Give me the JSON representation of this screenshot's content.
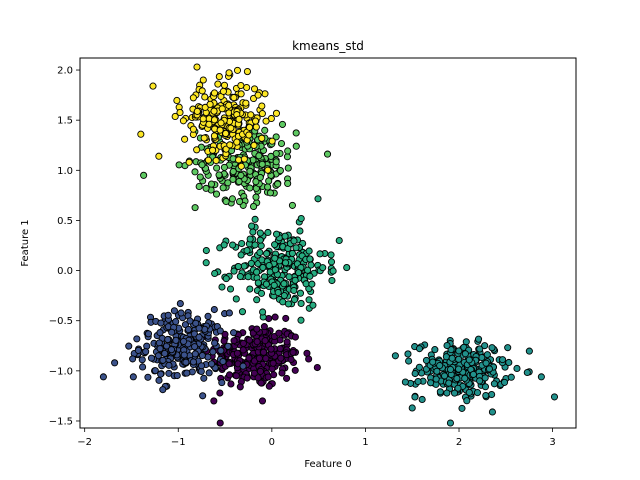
{
  "chart_data": {
    "type": "scatter",
    "title": "kmeans_std",
    "xlabel": "Feature 0",
    "ylabel": "Feature 1",
    "xlim": [
      -2.05,
      3.25
    ],
    "ylim": [
      -1.57,
      2.12
    ],
    "grid": false,
    "legend": "none",
    "xticks": [
      -2,
      -1,
      0,
      1,
      2,
      3
    ],
    "xtick_labels": [
      "−2",
      "−1",
      "0",
      "1",
      "2",
      "3"
    ],
    "yticks": [
      -1.5,
      -1.0,
      -0.5,
      0.0,
      0.5,
      1.0,
      1.5,
      2.0
    ],
    "ytick_labels": [
      "−1.5",
      "−1.0",
      "−0.5",
      "0.0",
      "0.5",
      "1.0",
      "1.5",
      "2.0"
    ],
    "point_edge_color": "#000000",
    "clusters": [
      {
        "color": "#440154",
        "center": [
          -0.18,
          -0.85
        ],
        "spread": [
          0.24,
          0.16
        ],
        "count": 260
      },
      {
        "color": "#3b528b",
        "center": [
          -0.95,
          -0.76
        ],
        "spread": [
          0.23,
          0.17
        ],
        "count": 240
      },
      {
        "color": "#21918c",
        "center": [
          2.03,
          -0.99
        ],
        "spread": [
          0.24,
          0.14
        ],
        "count": 260
      },
      {
        "color": "#27ad81",
        "center": [
          0.08,
          0.03
        ],
        "spread": [
          0.25,
          0.2
        ],
        "count": 260
      },
      {
        "color": "#5ec962",
        "center": [
          -0.27,
          1.08
        ],
        "spread": [
          0.27,
          0.19
        ],
        "count": 240
      },
      {
        "color": "#fde725",
        "center": [
          -0.5,
          1.52
        ],
        "spread": [
          0.22,
          0.18
        ],
        "count": 240
      }
    ],
    "outlier_points": [
      {
        "x": -1.8,
        "y": -1.06,
        "cluster": 1
      },
      {
        "x": -1.68,
        "y": -0.92,
        "cluster": 1
      },
      {
        "x": -1.48,
        "y": -1.06,
        "cluster": 1
      },
      {
        "x": -0.62,
        "y": -1.3,
        "cluster": 0
      },
      {
        "x": -0.1,
        "y": -1.3,
        "cluster": 0
      },
      {
        "x": 1.32,
        "y": -0.85,
        "cluster": 2
      },
      {
        "x": 1.5,
        "y": -1.37,
        "cluster": 2
      },
      {
        "x": 2.88,
        "y": -1.06,
        "cluster": 2
      },
      {
        "x": 3.02,
        "y": -1.26,
        "cluster": 2
      },
      {
        "x": 0.8,
        "y": 0.03,
        "cluster": 3
      },
      {
        "x": 0.72,
        "y": 0.3,
        "cluster": 3
      },
      {
        "x": -0.7,
        "y": 0.2,
        "cluster": 3
      },
      {
        "x": -1.37,
        "y": 0.95,
        "cluster": 4
      },
      {
        "x": 0.22,
        "y": 0.65,
        "cluster": 4
      },
      {
        "x": -1.4,
        "y": 1.36,
        "cluster": 5
      },
      {
        "x": -1.27,
        "y": 1.84,
        "cluster": 5
      },
      {
        "x": -0.8,
        "y": 2.03,
        "cluster": 5
      }
    ]
  }
}
